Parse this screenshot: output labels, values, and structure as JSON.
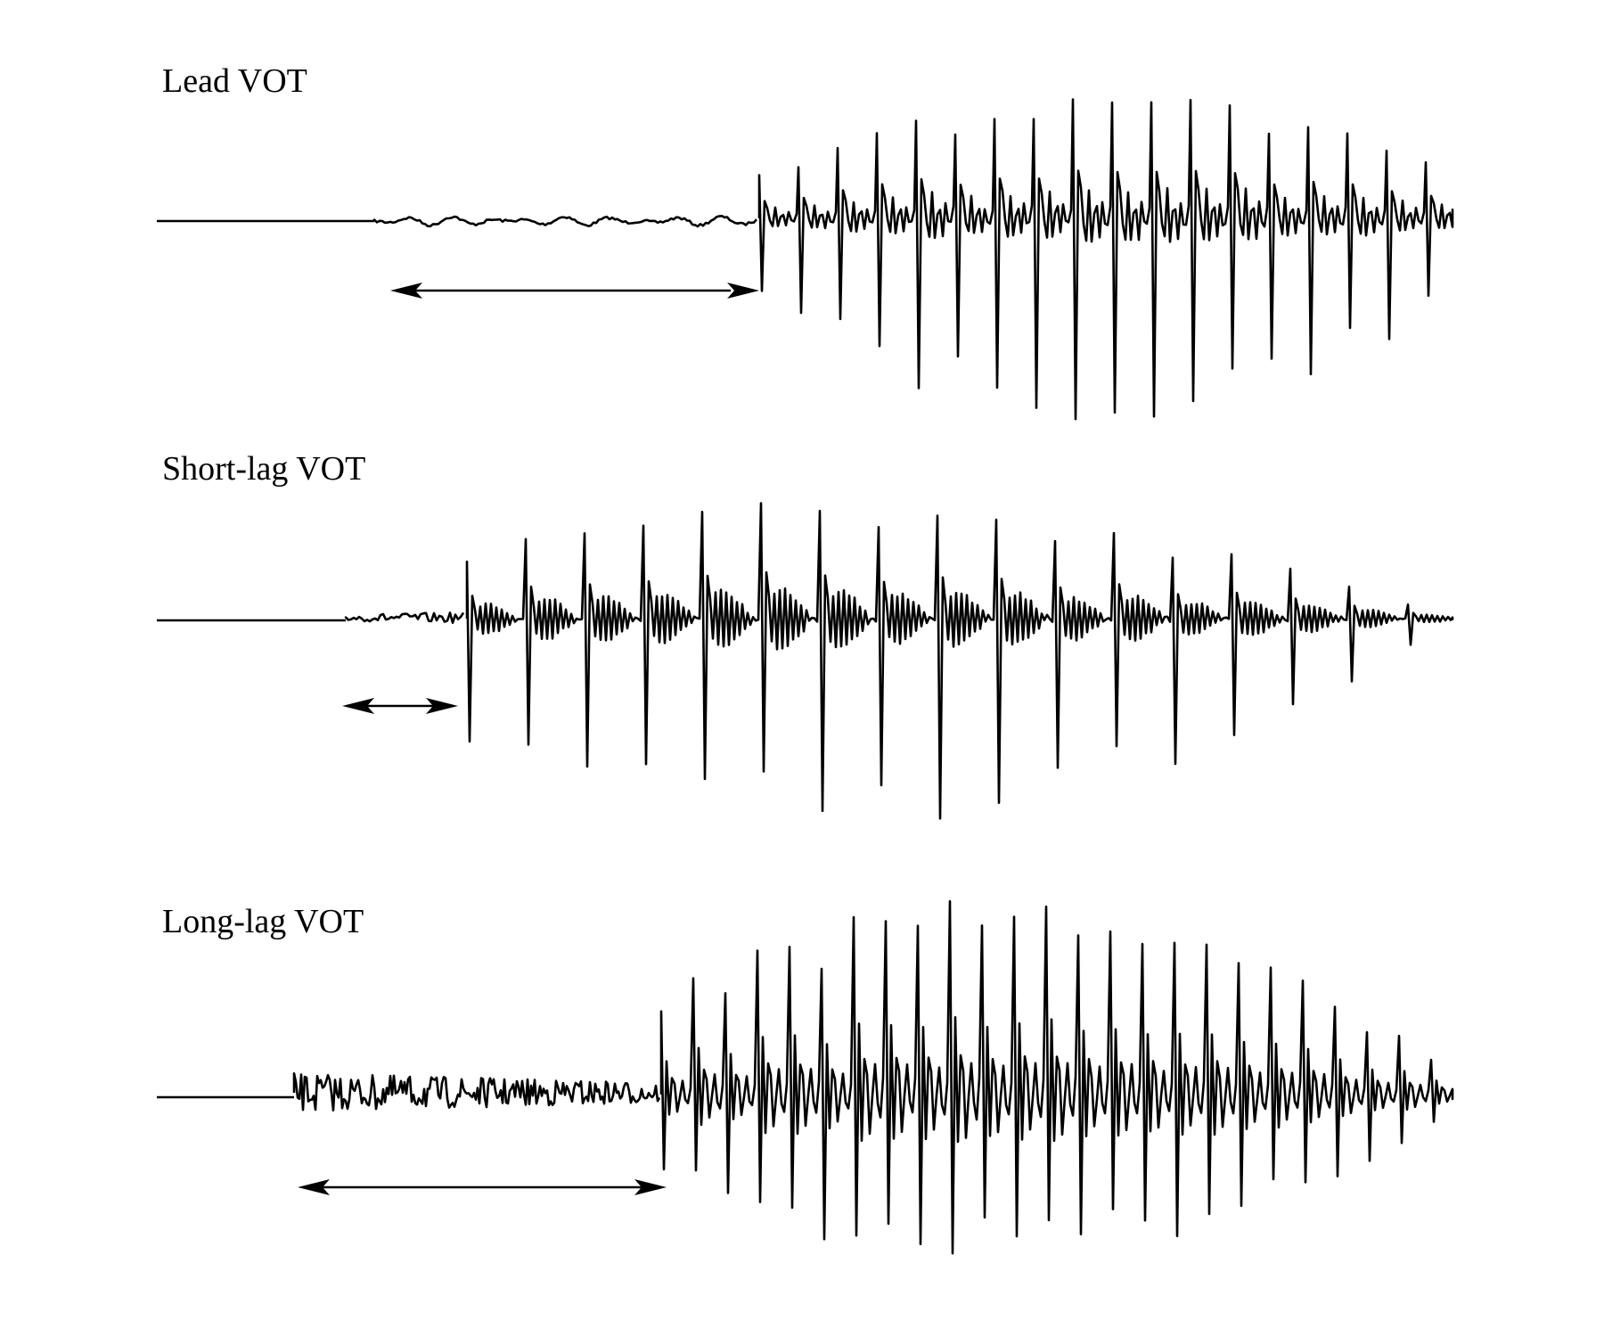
{
  "figure": {
    "panels": [
      {
        "id": "lead",
        "label": "Lead VOT"
      },
      {
        "id": "short",
        "label": "Short-lag VOT"
      },
      {
        "id": "long",
        "label": "Long-lag VOT"
      }
    ],
    "colors": {
      "ink": "#000000",
      "background": "#ffffff"
    }
  }
}
